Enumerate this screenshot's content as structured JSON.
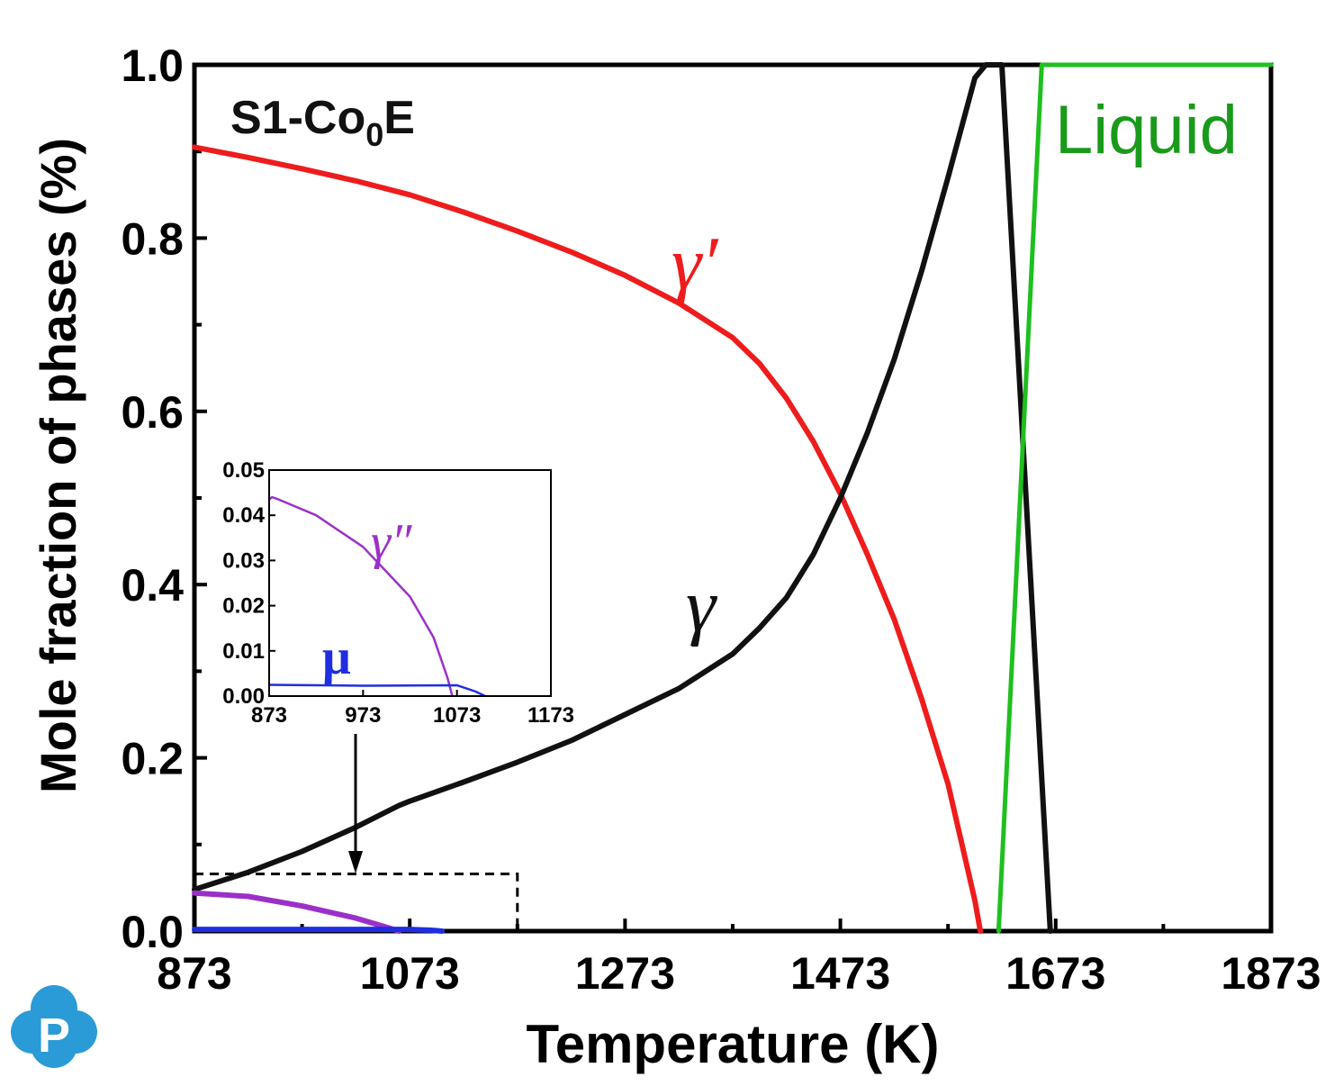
{
  "chart_data": [
    {
      "type": "line",
      "title": "S1-Co",
      "title_subscript": "0",
      "title_suffix": "E",
      "xlabel": "Temperature (K)",
      "ylabel": "Mole fraction of phases (%)",
      "xlim": [
        873,
        1873
      ],
      "ylim": [
        0,
        1.0
      ],
      "xticks": [
        "873",
        "1073",
        "1273",
        "1473",
        "1673",
        "1873"
      ],
      "yticks": [
        "0.0",
        "0.2",
        "0.4",
        "0.6",
        "0.8",
        "1.0"
      ],
      "grid": false,
      "series": [
        {
          "name": "γ′",
          "color": "#ee1c1c",
          "x": [
            873,
            923,
            973,
            1023,
            1073,
            1123,
            1173,
            1223,
            1273,
            1323,
            1373,
            1398,
            1423,
            1448,
            1473,
            1498,
            1523,
            1548,
            1573,
            1598,
            1603
          ],
          "y": [
            0.905,
            0.893,
            0.88,
            0.866,
            0.85,
            0.83,
            0.808,
            0.784,
            0.757,
            0.725,
            0.685,
            0.655,
            0.615,
            0.565,
            0.505,
            0.435,
            0.36,
            0.27,
            0.17,
            0.035,
            0.0
          ]
        },
        {
          "name": "γ",
          "color": "#111111",
          "x": [
            873,
            923,
            973,
            1023,
            1063,
            1073,
            1123,
            1173,
            1223,
            1273,
            1323,
            1373,
            1398,
            1423,
            1448,
            1473,
            1498,
            1523,
            1548,
            1573,
            1598,
            1608,
            1623,
            1668
          ],
          "y": [
            0.048,
            0.068,
            0.092,
            0.12,
            0.145,
            0.15,
            0.172,
            0.195,
            0.22,
            0.25,
            0.28,
            0.32,
            0.35,
            0.385,
            0.435,
            0.5,
            0.575,
            0.66,
            0.76,
            0.87,
            0.985,
            1.0,
            1.0,
            0.0
          ]
        },
        {
          "name": "Liquid",
          "color": "#1fbf1f",
          "x": [
            1620,
            1660,
            1873
          ],
          "y": [
            0.0,
            1.0,
            1.0
          ]
        },
        {
          "name": "γ″",
          "color": "#9b30c8",
          "x": [
            873,
            923,
            973,
            1023,
            1053,
            1063
          ],
          "y": [
            0.044,
            0.04,
            0.029,
            0.015,
            0.004,
            0.0
          ]
        },
        {
          "name": "μ",
          "color": "#1f2ee0",
          "x": [
            873,
            973,
            1073,
            1093,
            1103
          ],
          "y": [
            0.002,
            0.002,
            0.002,
            0.001,
            0.0
          ]
        }
      ],
      "annotations": [
        {
          "text": "S1-Co₀E",
          "role": "panel label"
        },
        {
          "text": "γ′",
          "color": "#ee1c1c"
        },
        {
          "text": "γ",
          "color": "#111111"
        },
        {
          "text": "Liquid",
          "color": "#1fbf1f"
        }
      ],
      "zoom_box": {
        "x": [
          873,
          1173
        ],
        "y": [
          0,
          0.066
        ]
      }
    },
    {
      "type": "line",
      "role": "inset",
      "xlim": [
        873,
        1173
      ],
      "ylim": [
        0,
        0.05
      ],
      "xticks": [
        "873",
        "973",
        "1073",
        "1173"
      ],
      "yticks": [
        "0.00",
        "0.01",
        "0.02",
        "0.03",
        "0.04",
        "0.05"
      ],
      "series": [
        {
          "name": "γ″",
          "color": "#9b30c8",
          "x": [
            873,
            876,
            883,
            923,
            973,
            1023,
            1048,
            1063,
            1068
          ],
          "y": [
            0.0435,
            0.044,
            0.0435,
            0.04,
            0.033,
            0.022,
            0.013,
            0.004,
            0.0
          ]
        },
        {
          "name": "μ",
          "color": "#1f2ee0",
          "x": [
            873,
            973,
            1073,
            1093,
            1103
          ],
          "y": [
            0.0025,
            0.0023,
            0.0024,
            0.001,
            0.0
          ]
        }
      ]
    }
  ],
  "logo": {
    "letter": "P",
    "color": "#2a9bd6"
  }
}
